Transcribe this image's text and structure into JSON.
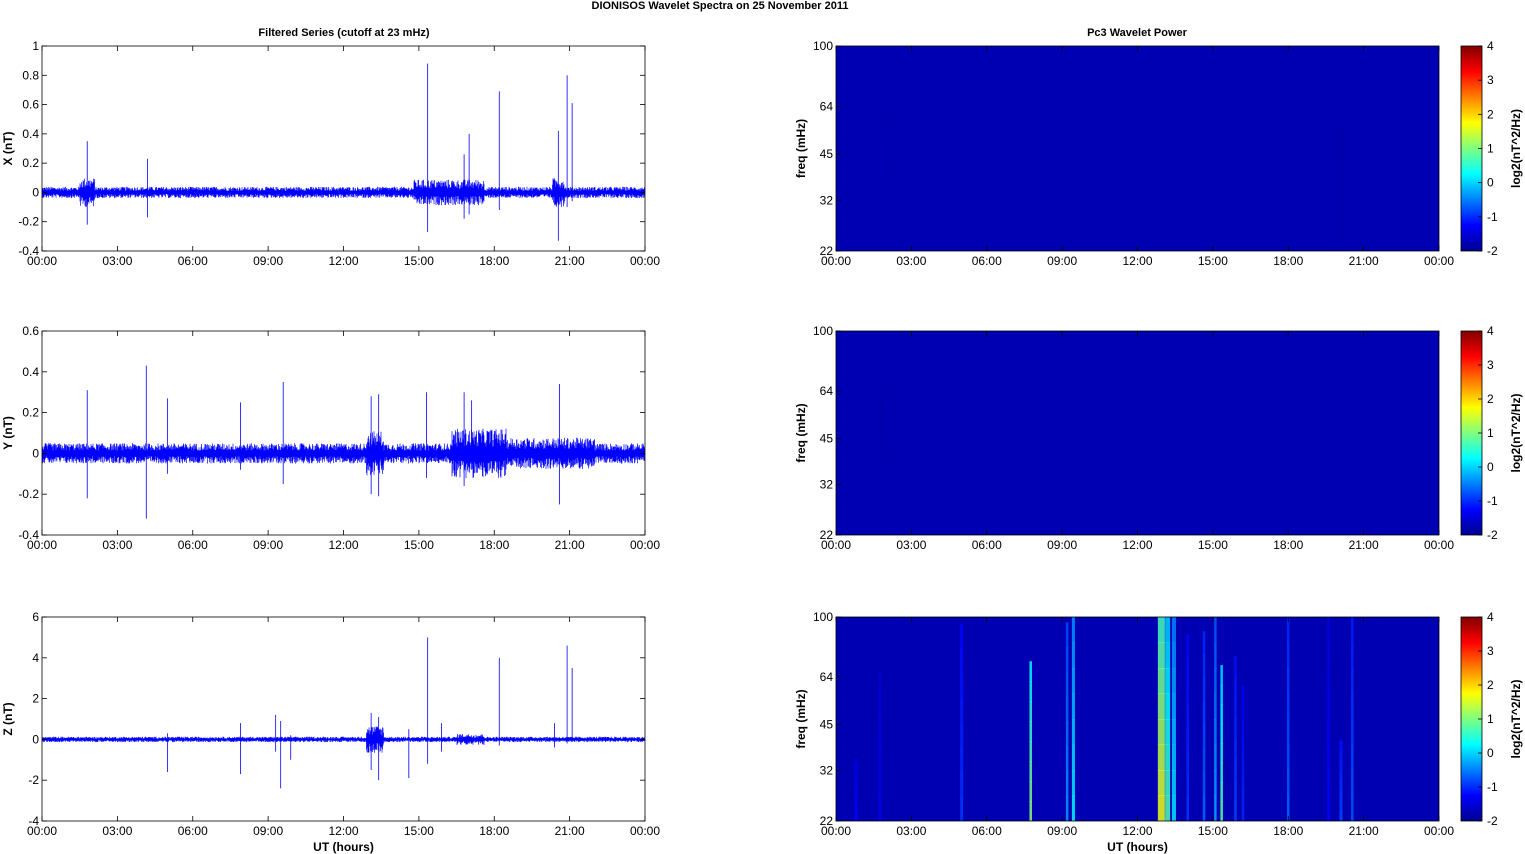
{
  "figure": {
    "title": "DIONISOS Wavelet Spectra on 25 November  2011",
    "left_title": "Filtered Series (cutoff at 23 mHz)",
    "right_title": "Pc3 Wavelet Power"
  },
  "chart_data": [
    {
      "type": "line",
      "panel": "X",
      "title": "Filtered Series (cutoff at 23 mHz)",
      "xlabel": "",
      "ylabel": "X (nT)",
      "xticks": [
        "00:00",
        "03:00",
        "06:00",
        "09:00",
        "12:00",
        "15:00",
        "18:00",
        "21:00",
        "00:00"
      ],
      "xlim_hours": [
        0,
        24
      ],
      "ylim": [
        -0.4,
        1
      ],
      "yticks": [
        "1",
        "0.8",
        "0.6",
        "0.4",
        "0.2",
        "0",
        "-0.2",
        "-0.4"
      ],
      "ytick_values": [
        1,
        0.8,
        0.6,
        0.4,
        0.2,
        0,
        -0.2,
        -0.4
      ],
      "line_color": "#0000ff",
      "noise_amplitude": 0.035,
      "spikes": [
        {
          "t": 1.8,
          "max": 0.35,
          "min": -0.22
        },
        {
          "t": 4.2,
          "max": 0.23,
          "min": -0.17
        },
        {
          "t": 15.35,
          "max": 0.88,
          "min": -0.27
        },
        {
          "t": 16.8,
          "max": 0.26,
          "min": -0.18
        },
        {
          "t": 17.0,
          "max": 0.4,
          "min": -0.15
        },
        {
          "t": 18.2,
          "max": 0.69,
          "min": -0.12
        },
        {
          "t": 20.55,
          "max": 0.42,
          "min": -0.33
        },
        {
          "t": 20.9,
          "max": 0.8,
          "min": -0.1
        },
        {
          "t": 21.1,
          "max": 0.61,
          "min": -0.06
        }
      ],
      "active_bursts": [
        {
          "start": 1.5,
          "end": 2.1,
          "amp": 0.09
        },
        {
          "start": 14.8,
          "end": 17.6,
          "amp": 0.08
        },
        {
          "start": 20.3,
          "end": 20.8,
          "amp": 0.09
        }
      ]
    },
    {
      "type": "line",
      "panel": "Y",
      "title": "",
      "xlabel": "",
      "ylabel": "Y (nT)",
      "xticks": [
        "00:00",
        "03:00",
        "06:00",
        "09:00",
        "12:00",
        "15:00",
        "18:00",
        "21:00",
        "00:00"
      ],
      "xlim_hours": [
        0,
        24
      ],
      "ylim": [
        -0.4,
        0.6
      ],
      "yticks": [
        "0.6",
        "0.4",
        "0.2",
        "0",
        "-0.2",
        "-0.4"
      ],
      "ytick_values": [
        0.6,
        0.4,
        0.2,
        0,
        -0.2,
        -0.4
      ],
      "line_color": "#0000ff",
      "noise_amplitude": 0.045,
      "spikes": [
        {
          "t": 1.8,
          "max": 0.31,
          "min": -0.22
        },
        {
          "t": 4.15,
          "max": 0.43,
          "min": -0.32
        },
        {
          "t": 5.0,
          "max": 0.27,
          "min": -0.1
        },
        {
          "t": 7.9,
          "max": 0.25,
          "min": -0.08
        },
        {
          "t": 9.6,
          "max": 0.35,
          "min": -0.15
        },
        {
          "t": 13.1,
          "max": 0.28,
          "min": -0.2
        },
        {
          "t": 13.4,
          "max": 0.29,
          "min": -0.21
        },
        {
          "t": 15.3,
          "max": 0.3,
          "min": -0.12
        },
        {
          "t": 16.8,
          "max": 0.3,
          "min": -0.16
        },
        {
          "t": 17.1,
          "max": 0.26,
          "min": -0.08
        },
        {
          "t": 20.6,
          "max": 0.34,
          "min": -0.25
        }
      ],
      "active_bursts": [
        {
          "start": 12.9,
          "end": 13.6,
          "amp": 0.1
        },
        {
          "start": 16.3,
          "end": 18.5,
          "amp": 0.11
        },
        {
          "start": 18.5,
          "end": 22.0,
          "amp": 0.07
        }
      ]
    },
    {
      "type": "line",
      "panel": "Z",
      "title": "",
      "xlabel": "UT (hours)",
      "ylabel": "Z (nT)",
      "xticks": [
        "00:00",
        "03:00",
        "06:00",
        "09:00",
        "12:00",
        "15:00",
        "18:00",
        "21:00",
        "00:00"
      ],
      "xlim_hours": [
        0,
        24
      ],
      "ylim": [
        -4,
        6
      ],
      "yticks": [
        "6",
        "4",
        "2",
        "0",
        "-2",
        "-4"
      ],
      "ytick_values": [
        6,
        4,
        2,
        0,
        -2,
        -4
      ],
      "line_color": "#0000ff",
      "noise_amplitude": 0.12,
      "spikes": [
        {
          "t": 5.0,
          "max": 0.3,
          "min": -1.6
        },
        {
          "t": 7.9,
          "max": 0.8,
          "min": -1.7
        },
        {
          "t": 9.3,
          "max": 1.2,
          "min": -0.6
        },
        {
          "t": 9.5,
          "max": 0.9,
          "min": -2.4
        },
        {
          "t": 9.9,
          "max": 0.2,
          "min": -1.0
        },
        {
          "t": 13.1,
          "max": 1.3,
          "min": -1.5
        },
        {
          "t": 13.4,
          "max": 1.1,
          "min": -2.0
        },
        {
          "t": 14.6,
          "max": 0.5,
          "min": -1.9
        },
        {
          "t": 15.35,
          "max": 5.0,
          "min": -1.2
        },
        {
          "t": 15.9,
          "max": 0.8,
          "min": -0.6
        },
        {
          "t": 18.2,
          "max": 4.0,
          "min": -0.3
        },
        {
          "t": 20.4,
          "max": 0.8,
          "min": -0.4
        },
        {
          "t": 20.9,
          "max": 4.6,
          "min": -0.2
        },
        {
          "t": 21.1,
          "max": 3.5,
          "min": -0.1
        }
      ],
      "active_bursts": [
        {
          "start": 12.9,
          "end": 13.6,
          "amp": 0.6
        },
        {
          "start": 16.5,
          "end": 17.6,
          "amp": 0.25
        }
      ]
    },
    {
      "type": "heatmap",
      "panel": "X power",
      "title": "Pc3 Wavelet Power",
      "xlabel": "",
      "ylabel": "freq (mHz)",
      "colorbar_label": "log2(nT^2/Hz)",
      "colorbar_ticks": [
        "4",
        "3",
        "2",
        "1",
        "0",
        "-1",
        "-2"
      ],
      "clim": [
        -2,
        4
      ],
      "xticks": [
        "00:00",
        "03:00",
        "06:00",
        "09:00",
        "12:00",
        "15:00",
        "18:00",
        "21:00",
        "00:00"
      ],
      "xlim_hours": [
        0,
        24
      ],
      "yticks": [
        "100",
        "64",
        "45",
        "32",
        "22"
      ],
      "ylim_mHz": [
        22,
        100
      ],
      "background_value": -2,
      "events": [
        {
          "t": 1.8,
          "value": -1.7,
          "fmin": 38,
          "fmax": 62,
          "width": 0.05
        },
        {
          "t": 20.1,
          "value": -1.8,
          "fmin": 22,
          "fmax": 55,
          "width": 0.05
        }
      ]
    },
    {
      "type": "heatmap",
      "panel": "Y power",
      "title": "",
      "xlabel": "",
      "ylabel": "freq (mHz)",
      "colorbar_label": "log2(nT^2/Hz)",
      "colorbar_ticks": [
        "4",
        "3",
        "2",
        "1",
        "0",
        "-1",
        "-2"
      ],
      "clim": [
        -2,
        4
      ],
      "xticks": [
        "00:00",
        "03:00",
        "06:00",
        "09:00",
        "12:00",
        "15:00",
        "18:00",
        "21:00",
        "00:00"
      ],
      "xlim_hours": [
        0,
        24
      ],
      "yticks": [
        "100",
        "64",
        "45",
        "32",
        "22"
      ],
      "ylim_mHz": [
        22,
        100
      ],
      "background_value": -2,
      "events": [
        {
          "t": 1.8,
          "value": -1.8,
          "fmin": 40,
          "fmax": 62,
          "width": 0.05
        }
      ]
    },
    {
      "type": "heatmap",
      "panel": "Z power",
      "title": "",
      "xlabel": "UT (hours)",
      "ylabel": "freq (mHz)",
      "colorbar_label": "log2(nT^2/Hz)",
      "colorbar_ticks": [
        "4",
        "3",
        "2",
        "1",
        "0",
        "-1",
        "-2"
      ],
      "clim": [
        -2,
        4
      ],
      "xticks": [
        "00:00",
        "03:00",
        "06:00",
        "09:00",
        "12:00",
        "15:00",
        "18:00",
        "21:00",
        "00:00"
      ],
      "xlim_hours": [
        0,
        24
      ],
      "yticks": [
        "100",
        "64",
        "45",
        "32",
        "22"
      ],
      "ylim_mHz": [
        22,
        100
      ],
      "background_value": -2,
      "events": [
        {
          "t": 0.8,
          "value": -1.2,
          "fmin": 22,
          "fmax": 35,
          "width": 0.06
        },
        {
          "t": 1.75,
          "value": -1.3,
          "fmin": 22,
          "fmax": 66,
          "width": 0.05
        },
        {
          "t": 5.0,
          "value": -0.9,
          "fmin": 22,
          "fmax": 95,
          "width": 0.06
        },
        {
          "t": 7.75,
          "value": 1.2,
          "fmin": 22,
          "fmax": 72,
          "width": 0.05
        },
        {
          "t": 9.2,
          "value": -0.3,
          "fmin": 22,
          "fmax": 96,
          "width": 0.05
        },
        {
          "t": 9.45,
          "value": 0.3,
          "fmin": 22,
          "fmax": 100,
          "width": 0.06
        },
        {
          "t": 12.95,
          "value": 1.8,
          "fmin": 22,
          "fmax": 100,
          "width": 0.14
        },
        {
          "t": 13.2,
          "value": 0.8,
          "fmin": 22,
          "fmax": 100,
          "width": 0.1
        },
        {
          "t": 13.45,
          "value": 0.2,
          "fmin": 22,
          "fmax": 100,
          "width": 0.08
        },
        {
          "t": 14.0,
          "value": -0.9,
          "fmin": 22,
          "fmax": 88,
          "width": 0.05
        },
        {
          "t": 14.65,
          "value": -0.6,
          "fmin": 22,
          "fmax": 90,
          "width": 0.05
        },
        {
          "t": 15.1,
          "value": -0.2,
          "fmin": 22,
          "fmax": 100,
          "width": 0.05
        },
        {
          "t": 15.35,
          "value": 0.9,
          "fmin": 22,
          "fmax": 70,
          "width": 0.05
        },
        {
          "t": 15.9,
          "value": -0.8,
          "fmin": 22,
          "fmax": 75,
          "width": 0.05
        },
        {
          "t": 16.2,
          "value": -1.0,
          "fmin": 22,
          "fmax": 60,
          "width": 0.05
        },
        {
          "t": 18.0,
          "value": -0.6,
          "fmin": 22,
          "fmax": 100,
          "width": 0.05
        },
        {
          "t": 19.6,
          "value": -1.2,
          "fmin": 22,
          "fmax": 100,
          "width": 0.05
        },
        {
          "t": 20.1,
          "value": -0.8,
          "fmin": 22,
          "fmax": 40,
          "width": 0.06
        },
        {
          "t": 20.55,
          "value": -0.7,
          "fmin": 22,
          "fmax": 100,
          "width": 0.05
        }
      ]
    }
  ]
}
